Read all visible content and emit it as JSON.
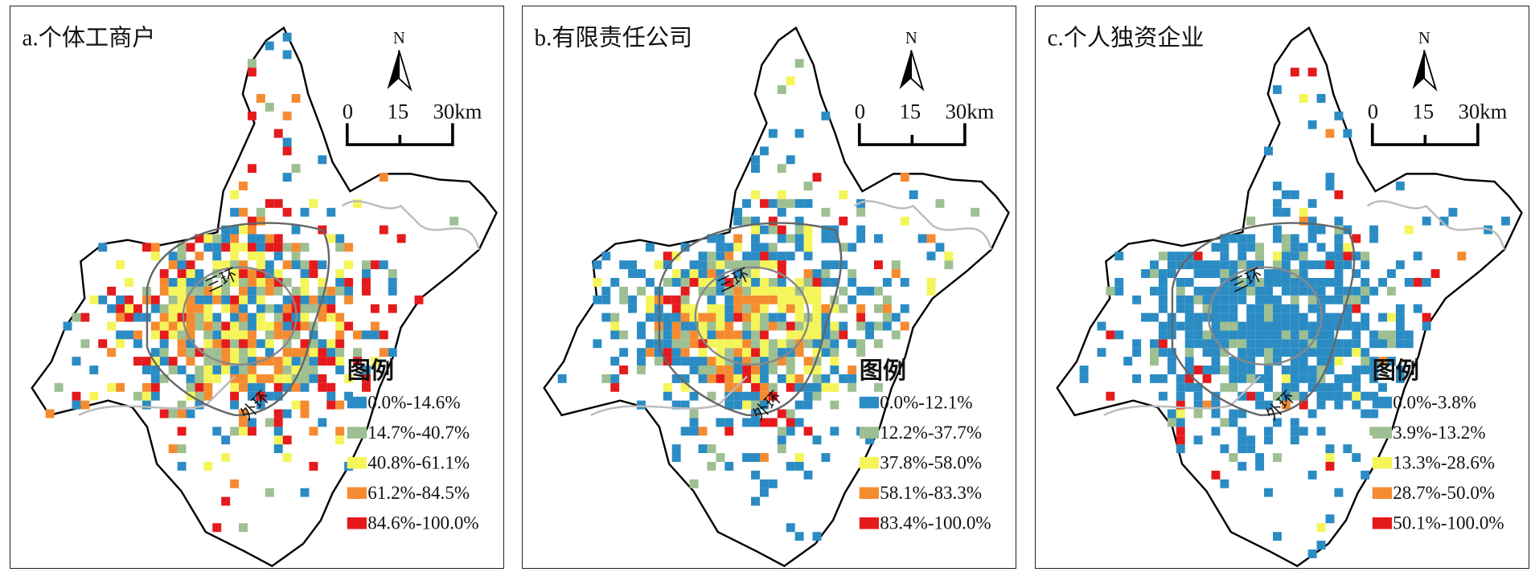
{
  "colors": [
    "#2b8cc4",
    "#9dbf92",
    "#f5f55a",
    "#f58b30",
    "#e41a1c"
  ],
  "common": {
    "north": "N",
    "scale": [
      "0",
      "15",
      "30km"
    ],
    "legend_title": "图例",
    "ring_inner": "三环",
    "ring_outer": "外环"
  },
  "panels": [
    {
      "title": "a.个体工商户",
      "legend": [
        "0.0%-14.6%",
        "14.7%-40.7%",
        "40.8%-61.1%",
        "61.2%-84.5%",
        "84.6%-100.0%"
      ]
    },
    {
      "title": "b.有限责任公司",
      "legend": [
        "0.0%-12.1%",
        "12.2%-37.7%",
        "37.8%-58.0%",
        "58.1%-83.3%",
        "83.4%-100.0%"
      ]
    },
    {
      "title": "c.个人独资企业",
      "legend": [
        "0.0%-3.8%",
        "3.9%-13.2%",
        "13.3%-28.6%",
        "28.7%-50.0%",
        "50.1%-100.0%"
      ]
    }
  ]
}
